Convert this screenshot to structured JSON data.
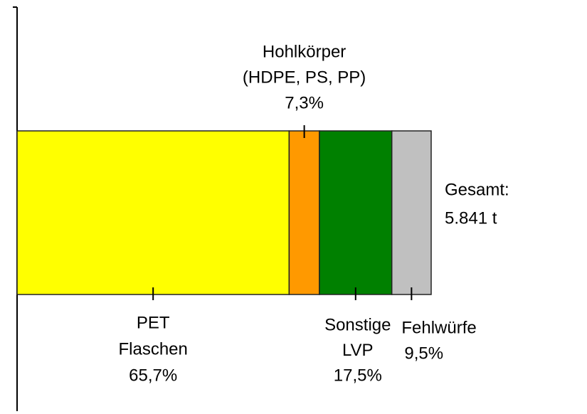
{
  "chart_data": {
    "type": "bar",
    "orientation": "horizontal",
    "stacked": true,
    "xlim": [
      0,
      100
    ],
    "series": [
      {
        "name": [
          "PET",
          "Flaschen"
        ],
        "color": "#ffff00",
        "values": [
          65.7
        ],
        "value_labels": [
          "65,7%"
        ]
      },
      {
        "name": [
          "Hohlkörper",
          "(HDPE, PS, PP)"
        ],
        "color": "#ff9900",
        "values": [
          7.3
        ],
        "value_labels": [
          "7,3%"
        ]
      },
      {
        "name": [
          "Sonstige",
          "LVP"
        ],
        "color": "#008000",
        "values": [
          17.5
        ],
        "value_labels": [
          "17,5%"
        ]
      },
      {
        "name": [
          "Fehlwürfe"
        ],
        "color": "#c0c0c0",
        "values": [
          9.5
        ],
        "value_labels": [
          "9,5%"
        ]
      }
    ],
    "annotation": [
      "Gesamt:",
      "5.841 t"
    ]
  }
}
